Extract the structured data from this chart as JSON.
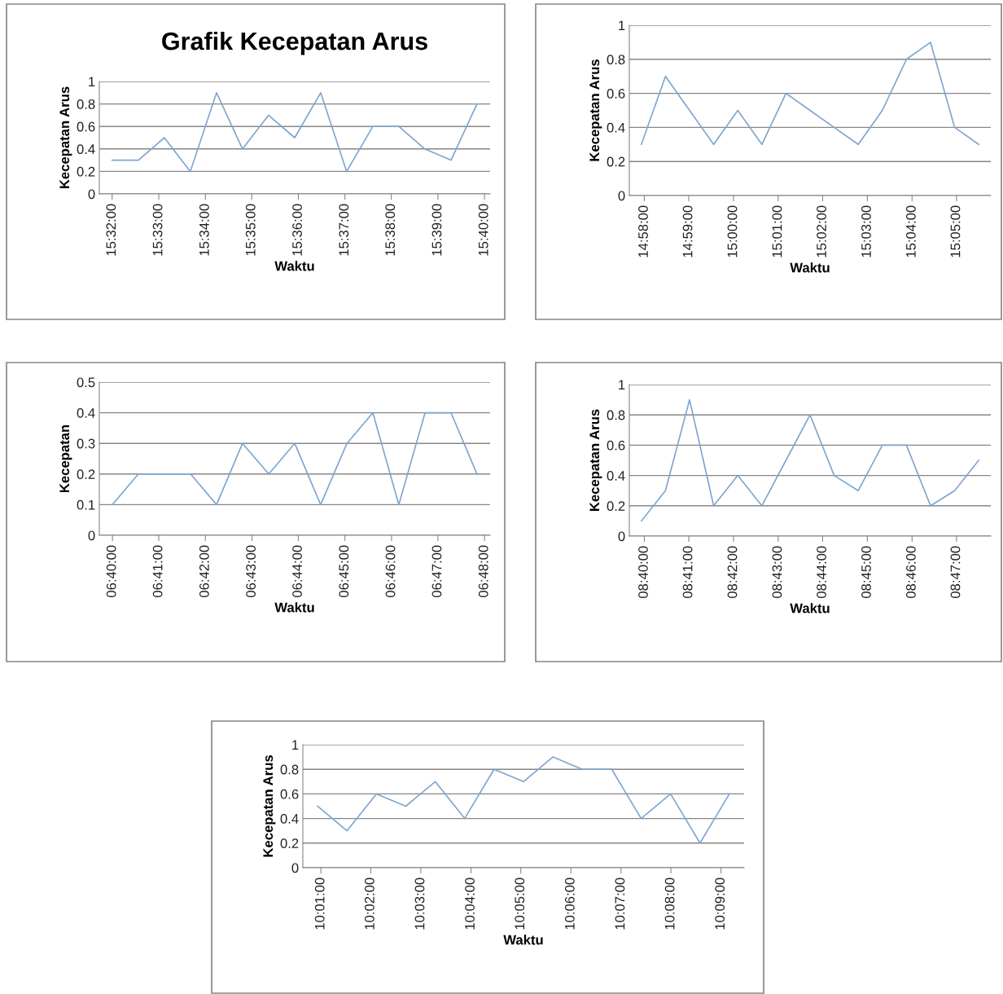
{
  "chart_data": [
    {
      "type": "line",
      "title": "Grafik Kecepatan Arus",
      "xlabel": "Waktu",
      "ylabel": "Kecepatan Arus",
      "color": "#7ea6cf",
      "grid": "y",
      "x": [
        15.5333,
        15.5427,
        15.552,
        15.5613,
        15.5707,
        15.58,
        15.5893,
        15.5987,
        15.608,
        15.6173,
        15.6267,
        15.636,
        15.6453,
        15.6547,
        15.664
      ],
      "values": [
        0.3,
        0.3,
        0.5,
        0.2,
        0.9,
        0.4,
        0.7,
        0.5,
        0.9,
        0.2,
        0.6,
        0.6,
        0.4,
        0.3,
        0.8
      ],
      "xlim": [
        15.5287,
        15.6687
      ],
      "xticks": [
        {
          "value": 15.5333,
          "label": "15:32:00"
        },
        {
          "value": 15.55,
          "label": "15:33:00"
        },
        {
          "value": 15.5667,
          "label": "15:34:00"
        },
        {
          "value": 15.5833,
          "label": "15:35:00"
        },
        {
          "value": 15.6,
          "label": "15:36:00"
        },
        {
          "value": 15.6167,
          "label": "15:37:00"
        },
        {
          "value": 15.6333,
          "label": "15:38:00"
        },
        {
          "value": 15.65,
          "label": "15:39:00"
        },
        {
          "value": 15.6667,
          "label": "15:40:00"
        }
      ],
      "ylim": [
        0,
        1
      ],
      "yticks": [
        0,
        0.2,
        0.4,
        0.6,
        0.8,
        1
      ]
    },
    {
      "type": "line",
      "xlabel": "Waktu",
      "ylabel": "Kecepatan Arus",
      "color": "#7ea6cf",
      "grid": "y",
      "x": [
        14.9656,
        14.9746,
        14.9836,
        14.9926,
        15.0016,
        15.0106,
        15.0196,
        15.0286,
        15.0376,
        15.0466,
        15.0556,
        15.0646,
        15.0736,
        15.0826,
        15.0916
      ],
      "values": [
        0.3,
        0.7,
        0.5,
        0.3,
        0.5,
        0.3,
        0.6,
        0.5,
        0.4,
        0.3,
        0.5,
        0.8,
        0.9,
        0.4,
        0.3
      ],
      "xlim": [
        14.9611,
        15.0961
      ],
      "xticks": [
        {
          "value": 14.9667,
          "label": "14:58:00"
        },
        {
          "value": 14.9833,
          "label": "14:59:00"
        },
        {
          "value": 15.0,
          "label": "15:00:00"
        },
        {
          "value": 15.0167,
          "label": "15:01:00"
        },
        {
          "value": 15.0333,
          "label": "15:02:00"
        },
        {
          "value": 15.05,
          "label": "15:03:00"
        },
        {
          "value": 15.0667,
          "label": "15:04:00"
        },
        {
          "value": 15.0833,
          "label": "15:05:00"
        }
      ],
      "ylim": [
        0,
        1
      ],
      "yticks": [
        0,
        0.2,
        0.4,
        0.6,
        0.8,
        1
      ]
    },
    {
      "type": "line",
      "xlabel": "Waktu",
      "ylabel": "Kecepatan",
      "color": "#7ea6cf",
      "grid": "y",
      "x": [
        6.6667,
        6.676,
        6.6853,
        6.6947,
        6.704,
        6.7133,
        6.7227,
        6.732,
        6.7413,
        6.7507,
        6.76,
        6.7693,
        6.7787,
        6.788,
        6.7973
      ],
      "values": [
        0.1,
        0.2,
        0.2,
        0.2,
        0.1,
        0.3,
        0.2,
        0.3,
        0.1,
        0.3,
        0.4,
        0.1,
        0.4,
        0.4,
        0.2
      ],
      "xlim": [
        6.662,
        6.802
      ],
      "xticks": [
        {
          "value": 6.6667,
          "label": "06:40:00"
        },
        {
          "value": 6.6833,
          "label": "06:41:00"
        },
        {
          "value": 6.7,
          "label": "06:42:00"
        },
        {
          "value": 6.7167,
          "label": "06:43:00"
        },
        {
          "value": 6.7333,
          "label": "06:44:00"
        },
        {
          "value": 6.75,
          "label": "06:45:00"
        },
        {
          "value": 6.7667,
          "label": "06:46:00"
        },
        {
          "value": 6.7833,
          "label": "06:47:00"
        },
        {
          "value": 6.8,
          "label": "06:48:00"
        }
      ],
      "ylim": [
        0,
        0.5
      ],
      "yticks": [
        0,
        0.1,
        0.2,
        0.3,
        0.4,
        0.5
      ]
    },
    {
      "type": "line",
      "xlabel": "Waktu",
      "ylabel": "Kecepatan Arus",
      "color": "#7ea6cf",
      "grid": "y",
      "x": [
        8.6656,
        8.6746,
        8.6836,
        8.6926,
        8.7016,
        8.7106,
        8.7196,
        8.7286,
        8.7376,
        8.7466,
        8.7556,
        8.7646,
        8.7736,
        8.7826,
        8.7916
      ],
      "values": [
        0.1,
        0.3,
        0.9,
        0.2,
        0.4,
        0.2,
        0.5,
        0.8,
        0.4,
        0.3,
        0.6,
        0.6,
        0.2,
        0.3,
        0.5
      ],
      "xlim": [
        8.6611,
        8.7961
      ],
      "xticks": [
        {
          "value": 8.6667,
          "label": "08:40:00"
        },
        {
          "value": 8.6833,
          "label": "08:41:00"
        },
        {
          "value": 8.7,
          "label": "08:42:00"
        },
        {
          "value": 8.7167,
          "label": "08:43:00"
        },
        {
          "value": 8.7333,
          "label": "08:44:00"
        },
        {
          "value": 8.75,
          "label": "08:45:00"
        },
        {
          "value": 8.7667,
          "label": "08:46:00"
        },
        {
          "value": 8.7833,
          "label": "08:47:00"
        }
      ],
      "ylim": [
        0,
        1
      ],
      "yticks": [
        0,
        0.2,
        0.4,
        0.6,
        0.8,
        1
      ]
    },
    {
      "type": "line",
      "xlabel": "Waktu",
      "ylabel": "Kecepatan Arus",
      "color": "#7ea6cf",
      "grid": "y",
      "x": [
        10.0156,
        10.0254,
        10.0352,
        10.045,
        10.0548,
        10.0646,
        10.0744,
        10.0842,
        10.094,
        10.1038,
        10.1136,
        10.1234,
        10.1332,
        10.143,
        10.1528
      ],
      "values": [
        0.5,
        0.3,
        0.6,
        0.5,
        0.7,
        0.4,
        0.8,
        0.7,
        0.9,
        0.8,
        0.8,
        0.4,
        0.6,
        0.2,
        0.6
      ],
      "xlim": [
        10.0107,
        10.1577
      ],
      "xticks": [
        {
          "value": 10.0167,
          "label": "10:01:00"
        },
        {
          "value": 10.0333,
          "label": "10:02:00"
        },
        {
          "value": 10.05,
          "label": "10:03:00"
        },
        {
          "value": 10.0667,
          "label": "10:04:00"
        },
        {
          "value": 10.0833,
          "label": "10:05:00"
        },
        {
          "value": 10.1,
          "label": "10:06:00"
        },
        {
          "value": 10.1167,
          "label": "10:07:00"
        },
        {
          "value": 10.1333,
          "label": "10:08:00"
        },
        {
          "value": 10.15,
          "label": "10:09:00"
        }
      ],
      "ylim": [
        0,
        1
      ],
      "yticks": [
        0,
        0.2,
        0.4,
        0.6,
        0.8,
        1
      ]
    }
  ]
}
